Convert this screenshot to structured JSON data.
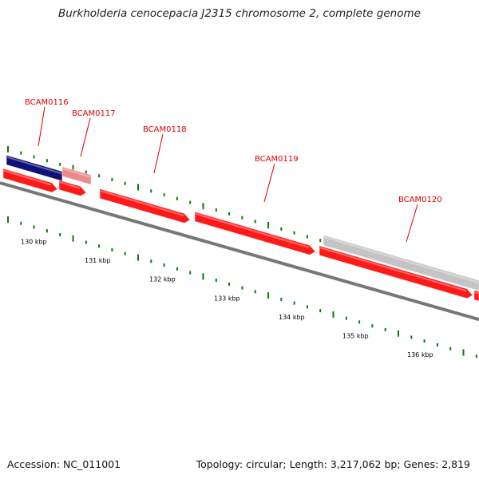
{
  "title": "Burkholderia cenocepacia J2315 chromosome 2, complete genome",
  "footer": {
    "accession": "Accession: NC_011001",
    "summary": "Topology: circular; Length: 3,217,062 bp; Genes: 2,819"
  },
  "colors": {
    "gene_forward": "#ff1a1a",
    "gene_dark_blue": "#10107a",
    "gene_pink": "#f08a8a",
    "gene_gray": "#c4c4c4",
    "backbone": "#777777",
    "tick_green": "#0a7a0a",
    "label_red": "#dd0000"
  },
  "kbp_ticks": [
    "130 kbp",
    "131 kbp",
    "132 kbp",
    "133 kbp",
    "134 kbp",
    "135 kbp",
    "136 kbp"
  ],
  "gene_labels": [
    "BCAM0116",
    "BCAM0117",
    "BCAM0118",
    "BCAM0119",
    "BCAM0120"
  ],
  "genes": [
    {
      "track": "upper",
      "color": "gene_dark_blue"
    },
    {
      "track": "upper",
      "color": "gene_pink"
    },
    {
      "track": "upper",
      "color": "gene_gray"
    },
    {
      "track": "lower",
      "color": "gene_forward"
    },
    {
      "track": "lower",
      "color": "gene_forward"
    },
    {
      "track": "lower",
      "color": "gene_forward"
    },
    {
      "track": "lower",
      "color": "gene_forward"
    },
    {
      "track": "lower",
      "color": "gene_forward"
    },
    {
      "track": "lower",
      "color": "gene_forward"
    }
  ]
}
